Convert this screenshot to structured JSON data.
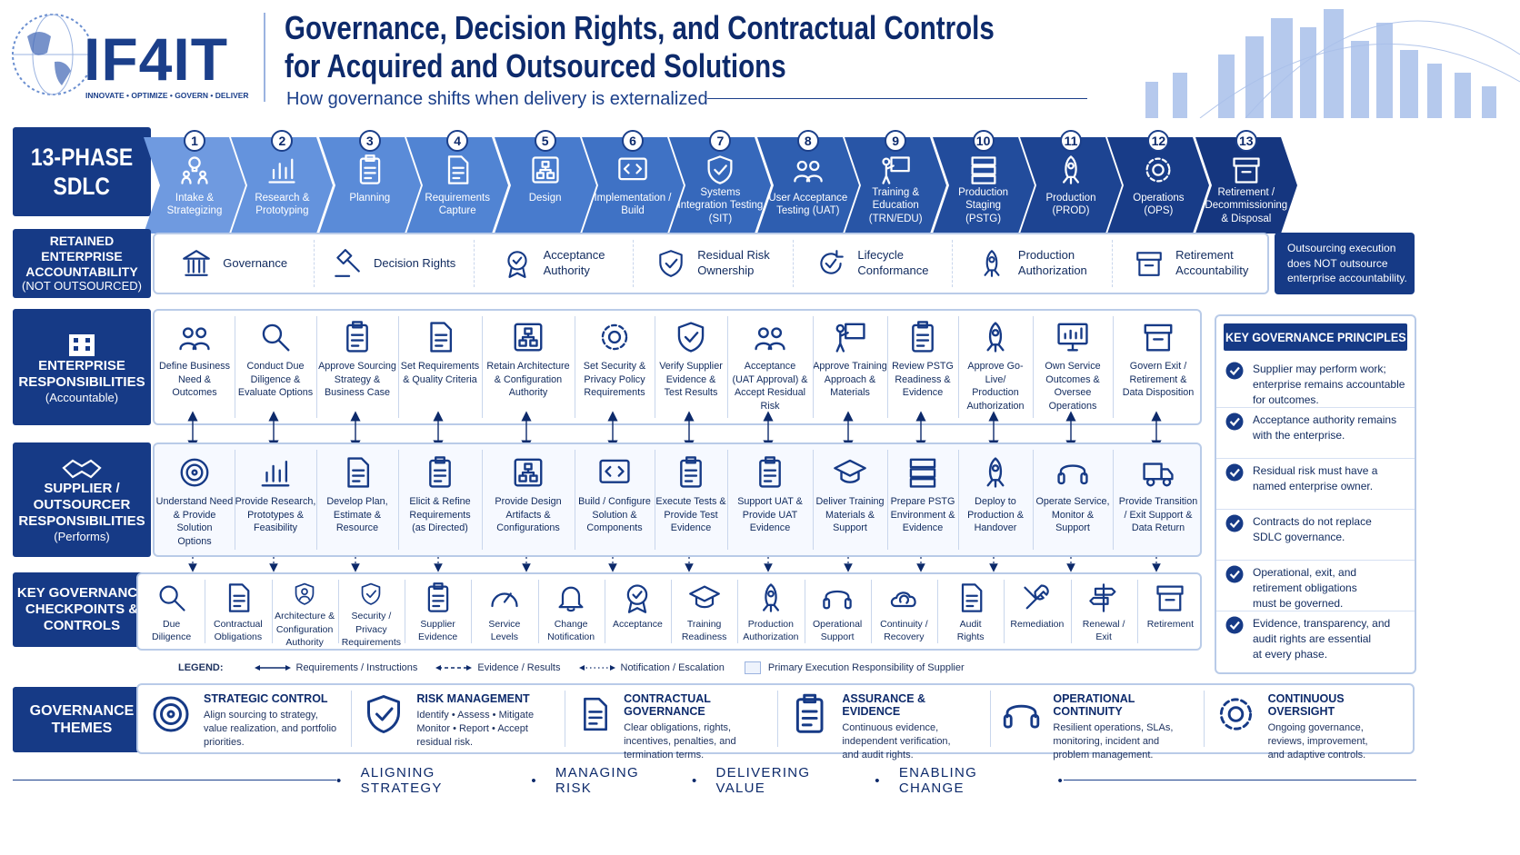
{
  "header": {
    "logo": "IF4IT",
    "logo_tag": "INNOVATE • OPTIMIZE • GOVERN • DELIVER",
    "title_line1": "Governance, Decision Rights, and Contractual Controls",
    "title_line2": "for Acquired and Outsourced Solutions",
    "subtitle": "How governance shifts when delivery is externalized"
  },
  "sdlc": {
    "label_line1": "13-PHASE",
    "label_line2": "SDLC",
    "phases": [
      {
        "n": "1",
        "l1": "Intake &",
        "l2": "Strategizing",
        "l3": ""
      },
      {
        "n": "2",
        "l1": "Research &",
        "l2": "Prototyping",
        "l3": ""
      },
      {
        "n": "3",
        "l1": "Planning",
        "l2": "",
        "l3": ""
      },
      {
        "n": "4",
        "l1": "Requirements",
        "l2": "Capture",
        "l3": ""
      },
      {
        "n": "5",
        "l1": "Design",
        "l2": "",
        "l3": ""
      },
      {
        "n": "6",
        "l1": "Implementation /",
        "l2": "Build",
        "l3": ""
      },
      {
        "n": "7",
        "l1": "Systems",
        "l2": "Integration Testing",
        "l3": "(SIT)"
      },
      {
        "n": "8",
        "l1": "User Acceptance",
        "l2": "Testing (UAT)",
        "l3": ""
      },
      {
        "n": "9",
        "l1": "Training &",
        "l2": "Education",
        "l3": "(TRN/EDU)"
      },
      {
        "n": "10",
        "l1": "Production",
        "l2": "Staging",
        "l3": "(PSTG)"
      },
      {
        "n": "11",
        "l1": "Production",
        "l2": "(PROD)",
        "l3": ""
      },
      {
        "n": "12",
        "l1": "Operations",
        "l2": "(OPS)",
        "l3": ""
      },
      {
        "n": "13",
        "l1": "Retirement /",
        "l2": "Decommissioning",
        "l3": "& Disposal"
      }
    ]
  },
  "retained": {
    "label_line1": "RETAINED ENTERPRISE",
    "label_line2": "ACCOUNTABILITY",
    "label_line3": "(NOT OUTSOURCED)",
    "items": [
      {
        "l1": "Governance",
        "l2": "",
        "icon": "bank-icon"
      },
      {
        "l1": "Decision Rights",
        "l2": "",
        "icon": "gavel-icon"
      },
      {
        "l1": "Acceptance",
        "l2": "Authority",
        "icon": "badge-icon"
      },
      {
        "l1": "Residual Risk",
        "l2": "Ownership",
        "icon": "shield-user-icon"
      },
      {
        "l1": "Lifecycle",
        "l2": "Conformance",
        "icon": "cycle-check-icon"
      },
      {
        "l1": "Production",
        "l2": "Authorization",
        "icon": "rocket-icon"
      },
      {
        "l1": "Retirement",
        "l2": "Accountability",
        "icon": "archive-icon"
      }
    ],
    "note_l1": "Outsourcing execution",
    "note_l2": "does NOT outsource",
    "note_l3": "enterprise accountability."
  },
  "enterprise": {
    "label_line1": "ENTERPRISE",
    "label_line2": "RESPONSIBILITIES",
    "label_line3": "(Accountable)",
    "items": [
      {
        "l1": "Define Business",
        "l2": "Need & Outcomes",
        "l3": ""
      },
      {
        "l1": "Conduct Due",
        "l2": "Diligence &",
        "l3": "Evaluate Options"
      },
      {
        "l1": "Approve Sourcing",
        "l2": "Strategy &",
        "l3": "Business Case"
      },
      {
        "l1": "Set Requirements",
        "l2": "& Quality Criteria",
        "l3": ""
      },
      {
        "l1": "Retain Architecture",
        "l2": "& Configuration",
        "l3": "Authority"
      },
      {
        "l1": "Set Security &",
        "l2": "Privacy Policy",
        "l3": "Requirements"
      },
      {
        "l1": "Verify Supplier",
        "l2": "Evidence &",
        "l3": "Test Results"
      },
      {
        "l1": "Acceptance",
        "l2": "(UAT Approval) &",
        "l3": "Accept Residual Risk"
      },
      {
        "l1": "Approve Training",
        "l2": "Approach &",
        "l3": "Materials"
      },
      {
        "l1": "Review PSTG",
        "l2": "Readiness &",
        "l3": "Evidence"
      },
      {
        "l1": "Approve Go-Live/",
        "l2": "Production",
        "l3": "Authorization"
      },
      {
        "l1": "Own Service",
        "l2": "Outcomes &",
        "l3": "Oversee Operations"
      },
      {
        "l1": "Govern Exit /",
        "l2": "Retirement &",
        "l3": "Data Disposition"
      }
    ]
  },
  "supplier": {
    "label_line1": "SUPPLIER /",
    "label_line2": "OUTSOURCER",
    "label_line3": "RESPONSIBILITIES",
    "label_line4": "(Performs)",
    "items": [
      {
        "l1": "Understand Need",
        "l2": "& Provide Solution",
        "l3": "Options"
      },
      {
        "l1": "Provide Research,",
        "l2": "Prototypes &",
        "l3": "Feasibility"
      },
      {
        "l1": "Develop Plan,",
        "l2": "Estimate &",
        "l3": "Resource"
      },
      {
        "l1": "Elicit & Refine",
        "l2": "Requirements",
        "l3": "(as Directed)"
      },
      {
        "l1": "Provide Design",
        "l2": "Artifacts &",
        "l3": "Configurations"
      },
      {
        "l1": "Build / Configure",
        "l2": "Solution &",
        "l3": "Components"
      },
      {
        "l1": "Execute Tests &",
        "l2": "Provide Test",
        "l3": "Evidence"
      },
      {
        "l1": "Support UAT &",
        "l2": "Provide UAT",
        "l3": "Evidence"
      },
      {
        "l1": "Deliver Training",
        "l2": "Materials &",
        "l3": "Support"
      },
      {
        "l1": "Prepare PSTG",
        "l2": "Environment &",
        "l3": "Evidence"
      },
      {
        "l1": "Deploy to",
        "l2": "Production &",
        "l3": "Handover"
      },
      {
        "l1": "Operate Service,",
        "l2": "Monitor &",
        "l3": "Support"
      },
      {
        "l1": "Provide Transition",
        "l2": "/ Exit Support &",
        "l3": "Data Return"
      }
    ]
  },
  "checkpoints": {
    "label_line1": "KEY GOVERNANCE",
    "label_line2": "CHECKPOINTS &",
    "label_line3": "CONTROLS",
    "items": [
      {
        "l1": "Due",
        "l2": "Diligence",
        "l3": ""
      },
      {
        "l1": "Contractual",
        "l2": "Obligations",
        "l3": ""
      },
      {
        "l1": "Architecture &",
        "l2": "Configuration",
        "l3": "Authority"
      },
      {
        "l1": "Security /",
        "l2": "Privacy",
        "l3": "Requirements"
      },
      {
        "l1": "Supplier",
        "l2": "Evidence",
        "l3": ""
      },
      {
        "l1": "Service",
        "l2": "Levels",
        "l3": ""
      },
      {
        "l1": "Change",
        "l2": "Notification",
        "l3": ""
      },
      {
        "l1": "Acceptance",
        "l2": "",
        "l3": ""
      },
      {
        "l1": "Training",
        "l2": "Readiness",
        "l3": ""
      },
      {
        "l1": "Production",
        "l2": "Authorization",
        "l3": ""
      },
      {
        "l1": "Operational",
        "l2": "Support",
        "l3": ""
      },
      {
        "l1": "Continuity /",
        "l2": "Recovery",
        "l3": ""
      },
      {
        "l1": "Audit",
        "l2": "Rights",
        "l3": ""
      },
      {
        "l1": "Remediation",
        "l2": "",
        "l3": ""
      },
      {
        "l1": "Renewal /",
        "l2": "Exit",
        "l3": ""
      },
      {
        "l1": "Retirement",
        "l2": "",
        "l3": ""
      }
    ]
  },
  "legend": {
    "title": "LEGEND:",
    "requirements": "Requirements / Instructions",
    "evidence": "Evidence / Results",
    "notification": "Notification / Escalation",
    "primary": "Primary Execution Responsibility of Supplier"
  },
  "principles": {
    "title": "KEY GOVERNANCE PRINCIPLES",
    "items": [
      {
        "l1": "Supplier may perform work;",
        "l2": "enterprise remains accountable",
        "l3": "for outcomes."
      },
      {
        "l1": "Acceptance authority remains",
        "l2": "with the enterprise.",
        "l3": ""
      },
      {
        "l1": "Residual risk must have a",
        "l2": "named enterprise owner.",
        "l3": ""
      },
      {
        "l1": "Contracts do not replace",
        "l2": "SDLC governance.",
        "l3": ""
      },
      {
        "l1": "Operational, exit, and",
        "l2": "retirement obligations",
        "l3": "must be governed."
      },
      {
        "l1": "Evidence, transparency, and",
        "l2": "audit rights are essential",
        "l3": "at every phase."
      }
    ]
  },
  "themes": {
    "label_line1": "GOVERNANCE",
    "label_line2": "THEMES",
    "items": [
      {
        "title": "STRATEGIC CONTROL",
        "l1": "Align sourcing to strategy,",
        "l2": "value realization, and portfolio",
        "l3": "priorities."
      },
      {
        "title": "RISK MANAGEMENT",
        "l1": "Identify • Assess • Mitigate",
        "l2": "Monitor • Report • Accept",
        "l3": "residual risk."
      },
      {
        "title": "CONTRACTUAL GOVERNANCE",
        "l1": "Clear obligations, rights,",
        "l2": "incentives, penalties, and",
        "l3": "termination terms."
      },
      {
        "title": "ASSURANCE & EVIDENCE",
        "l1": "Continuous evidence,",
        "l2": "independent verification,",
        "l3": "and audit rights."
      },
      {
        "title": "OPERATIONAL CONTINUITY",
        "l1": "Resilient operations, SLAs,",
        "l2": "monitoring, incident and",
        "l3": "problem management."
      },
      {
        "title": "CONTINUOUS OVERSIGHT",
        "l1": "Ongoing governance,",
        "l2": "reviews, improvement,",
        "l3": "and adaptive controls."
      }
    ]
  },
  "footer": {
    "w1": "ALIGNING STRATEGY",
    "w2": "MANAGING RISK",
    "w3": "DELIVERING VALUE",
    "w4": "ENABLING CHANGE"
  }
}
